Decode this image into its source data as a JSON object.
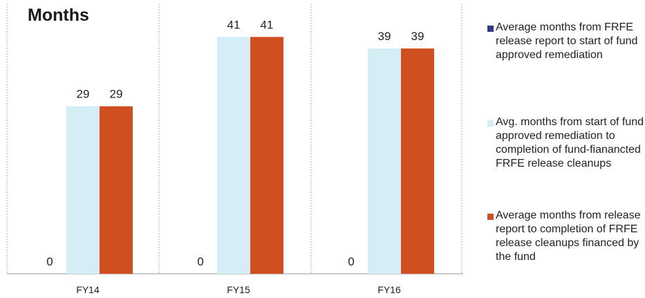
{
  "chart_data": {
    "type": "bar",
    "title": "",
    "ylabel": "Months",
    "xlabel": "",
    "categories": [
      "FY14",
      "FY15",
      "FY16"
    ],
    "ylim": [
      0,
      45
    ],
    "grid": false,
    "legend_position": "right",
    "series": [
      {
        "name": "Average months from FRFE release report to start  of fund approved remediation",
        "values": [
          0,
          0,
          0
        ],
        "color": "#2e3b8f"
      },
      {
        "name": "Avg.  months from start of fund approved remediation to completion of fund-fianancted  FRFE release cleanups",
        "values": [
          29,
          41,
          39
        ],
        "color": "#d5eef6"
      },
      {
        "name": "Average months from release report to completion of FRFE release cleanups financed by the fund",
        "values": [
          29,
          41,
          39
        ],
        "color": "#cf4f21"
      }
    ]
  }
}
